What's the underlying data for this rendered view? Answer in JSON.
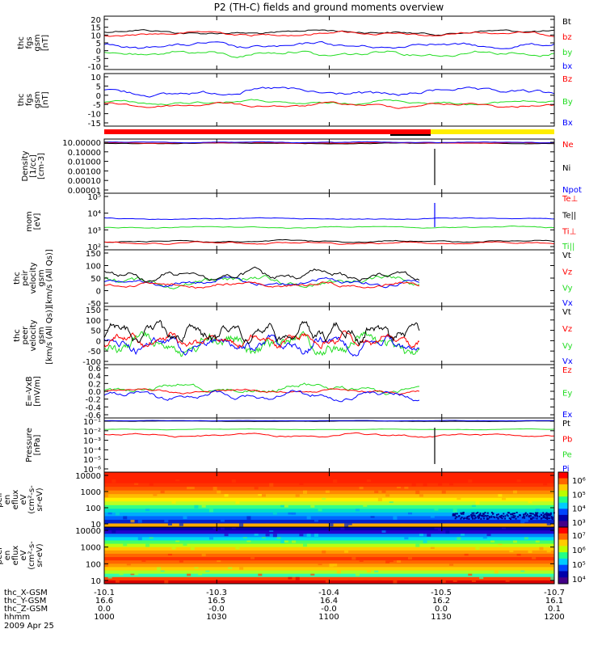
{
  "title": "P2 (TH-C) fields and ground moments overview",
  "date": "2009 Apr 25",
  "colors": {
    "black": "#000000",
    "red": "#ff0000",
    "green": "#22dd22",
    "blue": "#0000ff",
    "yellow": "#ffee00",
    "brightgreen": "#33ff33"
  },
  "xtime": {
    "row_labels": [
      "thc_X-GSM",
      "thc_Y-GSM",
      "thc_Z-GSM",
      "hhmm"
    ],
    "columns": [
      {
        "x": "-10.1",
        "y": "16.6",
        "z": "0.0",
        "t": "1000"
      },
      {
        "x": "-10.3",
        "y": "16.5",
        "z": "-0.0",
        "t": "1030"
      },
      {
        "x": "-10.4",
        "y": "16.4",
        "z": "-0.0",
        "t": "1100"
      },
      {
        "x": "-10.5",
        "y": "16.2",
        "z": "0.0",
        "t": "1130"
      },
      {
        "x": "-10.7",
        "y": "16.1",
        "z": "0.1",
        "t": "1200"
      }
    ]
  },
  "chart_data": [
    {
      "type": "line",
      "ylabel": [
        "thc",
        "fgs",
        "gsm",
        "[nT]"
      ],
      "ylim": [
        -15,
        20
      ],
      "yticks": [
        "20",
        "15",
        "10",
        "5",
        "0",
        "-5",
        "-10"
      ],
      "legend": [
        {
          "name": "Bt",
          "color": "#000000"
        },
        {
          "name": "bz",
          "color": "#ff0000"
        },
        {
          "name": "by",
          "color": "#22dd22"
        },
        {
          "name": "bx",
          "color": "#0000ff"
        }
      ]
    },
    {
      "type": "line",
      "ylabel": [
        "thc",
        "fgs",
        "gsm",
        "[nT]"
      ],
      "ylim": [
        -18,
        10
      ],
      "yticks": [
        "10",
        "5",
        "0",
        "-5",
        "-10",
        "-15"
      ],
      "legend": [
        {
          "name": "Bz",
          "color": "#ff0000"
        },
        {
          "name": "By",
          "color": "#22dd22"
        },
        {
          "name": "Bx",
          "color": "#0000ff"
        }
      ]
    },
    {
      "type": "line",
      "ylabel": [
        "Density",
        "[1/cc]",
        "[cm-3]"
      ],
      "yscale": "log",
      "yticks": [
        "10.00000",
        "0.10000",
        "0.01000",
        "0.00100",
        "0.00010",
        "0.00001"
      ],
      "legend": [
        {
          "name": "Ne",
          "color": "#ff0000"
        },
        {
          "name": "Ni",
          "color": "#000000"
        },
        {
          "name": "Npot",
          "color": "#0000ff"
        }
      ]
    },
    {
      "type": "line",
      "ylabel": [
        "mom",
        "[eV]"
      ],
      "yscale": "log",
      "yticks": [
        "10⁵",
        "10⁴",
        "10³",
        "10²"
      ],
      "legend": [
        {
          "name": "Te⊥",
          "color": "#ff0000"
        },
        {
          "name": "Te||",
          "color": "#000000"
        },
        {
          "name": "Ti⊥",
          "color": "#ff0000"
        },
        {
          "name": "Ti||",
          "color": "#22dd22"
        }
      ]
    },
    {
      "type": "line",
      "ylabel": [
        "thc",
        "peir",
        "velocity",
        "gsm",
        "[km/s (All Qs)]"
      ],
      "ylim": [
        -80,
        150
      ],
      "yticks": [
        "150",
        "100",
        "50",
        "0",
        "-50"
      ],
      "legend": [
        {
          "name": "Vt",
          "color": "#000000"
        },
        {
          "name": "Vz",
          "color": "#ff0000"
        },
        {
          "name": "Vy",
          "color": "#22dd22"
        },
        {
          "name": "Vx",
          "color": "#0000ff"
        }
      ]
    },
    {
      "type": "line",
      "ylabel": [
        "thc",
        "peer",
        "velocity",
        "gsm",
        "[km/s (All Qs)]"
      ],
      "ylim": [
        -100,
        150
      ],
      "yticks": [
        "150",
        "100",
        "50",
        "0",
        "-50",
        "-100"
      ],
      "legend": [
        {
          "name": "Vt",
          "color": "#000000"
        },
        {
          "name": "Vz",
          "color": "#ff0000"
        },
        {
          "name": "Vy",
          "color": "#22dd22"
        },
        {
          "name": "Vx",
          "color": "#0000ff"
        }
      ]
    },
    {
      "type": "line",
      "ylabel": [
        "E=-VxB",
        "[mV/m]"
      ],
      "ylim": [
        -0.6,
        0.6
      ],
      "yticks": [
        "0.6",
        "0.4",
        "0.2",
        "0.0",
        "-0.2",
        "-0.4",
        "-0.6"
      ],
      "legend": [
        {
          "name": "Ez",
          "color": "#ff0000"
        },
        {
          "name": "Ey",
          "color": "#22dd22"
        },
        {
          "name": "Ex",
          "color": "#0000ff"
        }
      ]
    },
    {
      "type": "line",
      "ylabel": [
        "Pressure",
        "[nPa]"
      ],
      "yscale": "log",
      "yticks": [
        "10⁻¹",
        "10⁻²",
        "10⁻³",
        "10⁻⁴",
        "10⁻⁵",
        "10⁻⁶"
      ],
      "legend": [
        {
          "name": "Pt",
          "color": "#000000"
        },
        {
          "name": "Pb",
          "color": "#ff0000"
        },
        {
          "name": "Pe",
          "color": "#22dd22"
        },
        {
          "name": "Pi",
          "color": "#0000ff"
        }
      ]
    },
    {
      "type": "heatmap",
      "ylabel": [
        "thc",
        "peir",
        "en",
        "eflux",
        "eV",
        "(cm²-s-",
        "sr-eV)"
      ],
      "yscale": "log",
      "yticks": [
        "10000",
        "1000",
        "100",
        "10"
      ],
      "colorbar_ticks": [
        "10⁶",
        "10⁵",
        "10⁴",
        "10³"
      ]
    },
    {
      "type": "heatmap",
      "ylabel": [
        "thc",
        "peer",
        "en",
        "eflux",
        "eV",
        "(cm²-s-",
        "sr-eV)"
      ],
      "yscale": "log",
      "yticks": [
        "10000",
        "1000",
        "100",
        "10"
      ],
      "colorbar_ticks": [
        "10⁷",
        "10⁶",
        "10⁵",
        "10⁴"
      ]
    }
  ]
}
